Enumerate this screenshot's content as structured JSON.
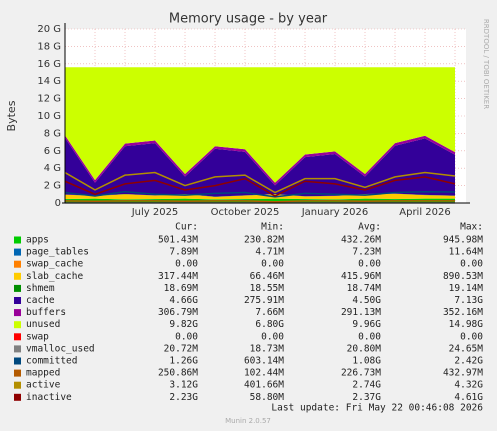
{
  "chart_data": {
    "type": "stacked_area",
    "title": "Memory usage - by year",
    "y_label": "Bytes",
    "side_text": "RRDTOOL / TOBI OETIKER",
    "categories": [
      null,
      null,
      null,
      "July 2025",
      null,
      null,
      "October 2025",
      null,
      null,
      "January 2026",
      null,
      null,
      "April 2026",
      null
    ],
    "ylim": [
      0,
      20
    ],
    "yticks": [
      {
        "value": 0,
        "label": "0"
      },
      {
        "value": 2,
        "label": "2 G"
      },
      {
        "value": 4,
        "label": "4 G"
      },
      {
        "value": 6,
        "label": "6 G"
      },
      {
        "value": 8,
        "label": "8 G"
      },
      {
        "value": 10,
        "label": "10 G"
      },
      {
        "value": 12,
        "label": "12 G"
      },
      {
        "value": 14,
        "label": "14 G"
      },
      {
        "value": 16,
        "label": "16 G"
      },
      {
        "value": 18,
        "label": "18 G"
      },
      {
        "value": 20,
        "label": "20 G"
      }
    ],
    "grid": true,
    "stats_headers": [
      "Cur:",
      "Min:",
      "Avg:",
      "Max:"
    ],
    "series": [
      {
        "name": "apps",
        "color": "#00cc00",
        "kind": "area",
        "values": [
          0.45,
          0.5,
          0.4,
          0.45,
          0.5,
          0.4,
          0.45,
          0.5,
          0.45,
          0.4,
          0.5,
          0.45,
          0.5,
          0.5
        ],
        "stats": [
          "501.43M",
          "230.82M",
          "432.26M",
          "945.98M"
        ]
      },
      {
        "name": "page_tables",
        "color": "#0066b3",
        "kind": "area",
        "values": [
          0.01,
          0.01,
          0.01,
          0.01,
          0.01,
          0.01,
          0.01,
          0.01,
          0.01,
          0.01,
          0.01,
          0.01,
          0.01,
          0.01
        ],
        "stats": [
          "7.89M",
          "4.71M",
          "7.23M",
          "11.64M"
        ]
      },
      {
        "name": "swap_cache",
        "color": "#ff8000",
        "kind": "area",
        "values": [
          0,
          0,
          0,
          0,
          0,
          0,
          0,
          0,
          0,
          0,
          0,
          0,
          0,
          0
        ],
        "stats": [
          "0.00",
          "0.00",
          "0.00",
          "0.00"
        ]
      },
      {
        "name": "slab_cache",
        "color": "#ffcc00",
        "kind": "area",
        "values": [
          0.5,
          0.3,
          0.6,
          0.4,
          0.5,
          0.3,
          0.4,
          0.5,
          0.3,
          0.4,
          0.5,
          0.6,
          0.4,
          0.32
        ],
        "stats": [
          "317.44M",
          "66.46M",
          "415.96M",
          "890.53M"
        ]
      },
      {
        "name": "shmem",
        "color": "#008f00",
        "kind": "area",
        "values": [
          0.02,
          0.02,
          0.02,
          0.02,
          0.02,
          0.02,
          0.02,
          0.02,
          0.02,
          0.02,
          0.02,
          0.02,
          0.02,
          0.02
        ],
        "stats": [
          "18.69M",
          "18.55M",
          "18.74M",
          "19.14M"
        ]
      },
      {
        "name": "cache",
        "color": "#330099",
        "kind": "area",
        "values": [
          6.5,
          1.5,
          5.5,
          6.0,
          2.0,
          5.5,
          5.0,
          1.0,
          4.5,
          4.8,
          2.0,
          5.5,
          6.5,
          4.7
        ],
        "stats": [
          "4.66G",
          "275.91M",
          "4.50G",
          "7.13G"
        ]
      },
      {
        "name": "buffers",
        "color": "#990099",
        "kind": "area",
        "values": [
          0.3,
          0.3,
          0.3,
          0.3,
          0.3,
          0.3,
          0.3,
          0.3,
          0.3,
          0.3,
          0.3,
          0.3,
          0.3,
          0.3
        ],
        "stats": [
          "306.79M",
          "7.66M",
          "291.13M",
          "352.16M"
        ]
      },
      {
        "name": "unused",
        "color": "#ccff00",
        "kind": "area",
        "values": [
          7.82,
          12.97,
          8.77,
          8.42,
          12.27,
          9.07,
          9.42,
          13.27,
          10.02,
          9.67,
          12.27,
          8.72,
          7.87,
          9.75
        ],
        "stats": [
          "9.82G",
          "6.80G",
          "9.96G",
          "14.98G"
        ]
      },
      {
        "name": "swap",
        "color": "#ff0000",
        "kind": "area",
        "values": [
          0,
          0,
          0,
          0,
          0,
          0,
          0,
          0,
          0,
          0,
          0,
          0,
          0,
          0
        ],
        "stats": [
          "0.00",
          "0.00",
          "0.00",
          "0.00"
        ]
      },
      {
        "name": "vmalloc_used",
        "color": "#808080",
        "kind": "line",
        "values": [
          0.02,
          0.02,
          0.02,
          0.02,
          0.02,
          0.02,
          0.02,
          0.02,
          0.02,
          0.02,
          0.02,
          0.02,
          0.02,
          0.02
        ],
        "stats": [
          "20.72M",
          "18.73M",
          "20.80M",
          "24.65M"
        ]
      },
      {
        "name": "committed",
        "color": "#00487d",
        "kind": "line",
        "values": [
          1.2,
          0.8,
          1.3,
          1.0,
          0.9,
          1.1,
          1.2,
          0.7,
          1.1,
          1.0,
          0.9,
          1.2,
          1.3,
          1.26
        ],
        "stats": [
          "1.26G",
          "603.14M",
          "1.08G",
          "2.42G"
        ]
      },
      {
        "name": "mapped",
        "color": "#b35a00",
        "kind": "line",
        "values": [
          0.25,
          0.2,
          0.25,
          0.25,
          0.2,
          0.25,
          0.25,
          0.15,
          0.25,
          0.25,
          0.2,
          0.25,
          0.25,
          0.25
        ],
        "stats": [
          "250.86M",
          "102.44M",
          "226.73M",
          "432.97M"
        ]
      },
      {
        "name": "active",
        "color": "#b38f00",
        "kind": "line",
        "values": [
          3.5,
          1.5,
          3.2,
          3.5,
          2.0,
          3.0,
          3.2,
          1.2,
          2.8,
          2.8,
          1.8,
          3.0,
          3.5,
          3.1
        ],
        "stats": [
          "3.12G",
          "401.66M",
          "2.74G",
          "4.32G"
        ]
      },
      {
        "name": "inactive",
        "color": "#8f0000",
        "kind": "line",
        "values": [
          2.5,
          1.0,
          2.2,
          2.6,
          1.5,
          2.0,
          2.8,
          0.8,
          2.5,
          2.2,
          1.5,
          2.6,
          3.0,
          2.2
        ],
        "stats": [
          "2.23G",
          "58.80M",
          "2.37G",
          "4.61G"
        ]
      }
    ],
    "last_update": "Last update: Fri May 22 00:46:08 2026",
    "footer": "Munin 2.0.57"
  }
}
